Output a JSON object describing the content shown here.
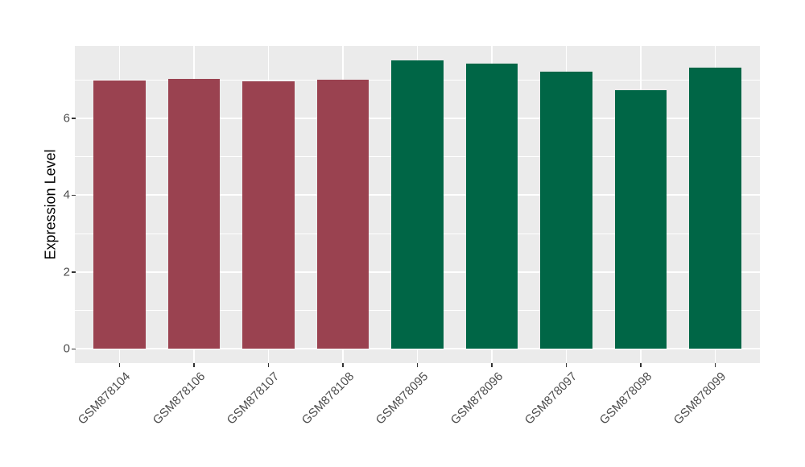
{
  "chart_data": {
    "type": "bar",
    "title": "",
    "ylabel": "Expression Level",
    "xlabel": "",
    "categories": [
      "GSM878104",
      "GSM878106",
      "GSM878107",
      "GSM878108",
      "GSM878095",
      "GSM878096",
      "GSM878097",
      "GSM878098",
      "GSM878099"
    ],
    "values": [
      6.98,
      7.03,
      6.95,
      7.01,
      7.51,
      7.42,
      7.22,
      6.72,
      7.31
    ],
    "bar_colors": [
      "#9A4250",
      "#9A4250",
      "#9A4250",
      "#9A4250",
      "#006646",
      "#006646",
      "#006646",
      "#006646",
      "#006646"
    ],
    "group_colors": {
      "left-group": "#9A4250",
      "right-group": "#006646"
    },
    "y_ticks": [
      0,
      2,
      4,
      6
    ],
    "y_minor_ticks": [
      1,
      3,
      5,
      7
    ],
    "ylim": [
      -0.37,
      7.88
    ],
    "bar_width_fraction": 0.7,
    "grid": "on",
    "legend": "none",
    "panel_bg": "#EBEBEB",
    "grid_color": "#FFFFFF",
    "tick_mark_color": "#333333",
    "tick_label_color": "#4D4D4D",
    "title_color": "#000000",
    "background": "#FFFFFF"
  }
}
